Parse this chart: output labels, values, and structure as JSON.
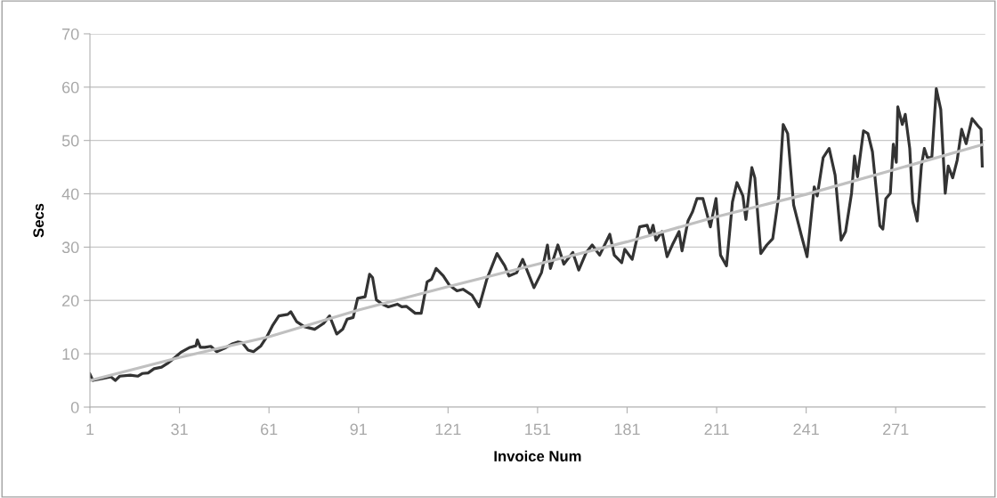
{
  "chart_data": {
    "type": "line",
    "xlabel": "Invoice Num",
    "ylabel": "Secs",
    "xlim": [
      1,
      301
    ],
    "xticks": [
      1,
      31,
      61,
      91,
      121,
      151,
      181,
      211,
      241,
      271
    ],
    "ylim": [
      0,
      70
    ],
    "yticks": [
      0,
      10,
      20,
      30,
      40,
      50,
      60,
      70
    ],
    "grid": "y",
    "legend": false,
    "marker": "none",
    "line_style": "solid",
    "series": [
      {
        "color": "#333333",
        "x": [
          1,
          2,
          5.5,
          8,
          9.5,
          11,
          14.5,
          17,
          18.5,
          20.5,
          22.5,
          25,
          27,
          29.5,
          31.5,
          34.5,
          36.5,
          37,
          38,
          39.5,
          41.5,
          43.5,
          46,
          48.5,
          50.5,
          52,
          54,
          55.8,
          58.3,
          60.3,
          62.3,
          64.3,
          67.3,
          68.3,
          70.3,
          72.8,
          76.3,
          79.3,
          81.3,
          83.7,
          85.7,
          87.2,
          89.2,
          90.7,
          93.2,
          94.7,
          95.7,
          97,
          99,
          101,
          104,
          105.5,
          107,
          110,
          112,
          114,
          115.5,
          117,
          119.4,
          121.4,
          124,
          126,
          129,
          131.4,
          134,
          137.4,
          140,
          141.4,
          144,
          146,
          149.8,
          152.3,
          154.3,
          155.3,
          157.8,
          159.8,
          162.8,
          164.8,
          167.3,
          169.3,
          171.8,
          175.2,
          176.7,
          179.2,
          180.2,
          182.7,
          185.2,
          187.7,
          188.7,
          189.7,
          190.7,
          192.7,
          194.4,
          196.4,
          198.4,
          199.4,
          201.4,
          202.9,
          204.4,
          206.4,
          208.9,
          210.8,
          212.3,
          214.3,
          216.3,
          217.8,
          219.8,
          220.8,
          222.8,
          223.8,
          225.8,
          227.8,
          229.8,
          231.8,
          233.3,
          234.8,
          236.8,
          239.3,
          241.3,
          243.7,
          244.7,
          246.7,
          248.7,
          250.7,
          252.7,
          254.2,
          256.2,
          257.2,
          258.2,
          260.2,
          261.7,
          263.2,
          265.7,
          266.7,
          267.7,
          269.2,
          270.2,
          271.2,
          271.7,
          273.2,
          274.2,
          275.7,
          276.7,
          278.2,
          279.6,
          280.6,
          281.6,
          283.1,
          284.6,
          286.1,
          287.6,
          288.6,
          290.1,
          291.6,
          293.1,
          294.6,
          296.6,
          298.6,
          299.6,
          300
        ],
        "values": [
          6.2,
          5.0,
          5.4,
          5.7,
          5.0,
          5.8,
          6.0,
          5.8,
          6.3,
          6.4,
          7.2,
          7.5,
          8.2,
          9.3,
          10.3,
          11.2,
          11.5,
          12.6,
          11.2,
          11.2,
          11.4,
          10.4,
          11.0,
          11.8,
          12.2,
          12.1,
          10.7,
          10.4,
          11.5,
          13.2,
          15.4,
          17.1,
          17.4,
          17.9,
          16.0,
          15.1,
          14.6,
          15.7,
          17.1,
          13.7,
          14.6,
          16.5,
          16.8,
          20.4,
          20.7,
          24.9,
          24.3,
          20.1,
          19.3,
          18.8,
          19.3,
          18.8,
          18.9,
          17.6,
          17.6,
          23.5,
          24.0,
          26.0,
          24.6,
          22.9,
          21.8,
          22.1,
          21.0,
          18.8,
          24.0,
          28.8,
          26.5,
          24.6,
          25.2,
          27.7,
          22.4,
          25.2,
          30.4,
          26.0,
          30.4,
          26.8,
          29.0,
          25.7,
          29.0,
          30.4,
          28.5,
          32.4,
          28.5,
          27.1,
          29.6,
          27.7,
          33.8,
          34.1,
          32.4,
          34.1,
          31.3,
          32.9,
          28.2,
          30.7,
          32.9,
          29.3,
          34.9,
          36.6,
          39.1,
          39.1,
          33.8,
          39.1,
          28.5,
          26.5,
          38.5,
          42.1,
          39.6,
          35.2,
          44.9,
          43.0,
          28.8,
          30.4,
          31.6,
          39.6,
          53.0,
          51.3,
          37.9,
          32.4,
          28.2,
          41.3,
          39.6,
          46.8,
          48.5,
          43.5,
          31.3,
          32.9,
          40.1,
          47.1,
          43.2,
          51.8,
          51.3,
          47.9,
          34.0,
          33.4,
          39.1,
          40.1,
          49.3,
          45.9,
          56.3,
          53.0,
          54.9,
          48.5,
          38.5,
          34.9,
          45.2,
          48.5,
          46.8,
          46.8,
          59.7,
          55.8,
          40.1,
          45.2,
          43.0,
          46.3,
          52.1,
          49.4,
          54.1,
          52.7,
          52.1,
          45.2
        ]
      },
      {
        "color": "#c0c0c0",
        "x": [
          1,
          31,
          61,
          91,
          121,
          151,
          181,
          211,
          241,
          271,
          300
        ],
        "values": [
          5.0,
          9.3,
          13.2,
          18.2,
          22.6,
          26.8,
          31.0,
          35.7,
          39.9,
          44.6,
          49.2
        ]
      }
    ]
  }
}
